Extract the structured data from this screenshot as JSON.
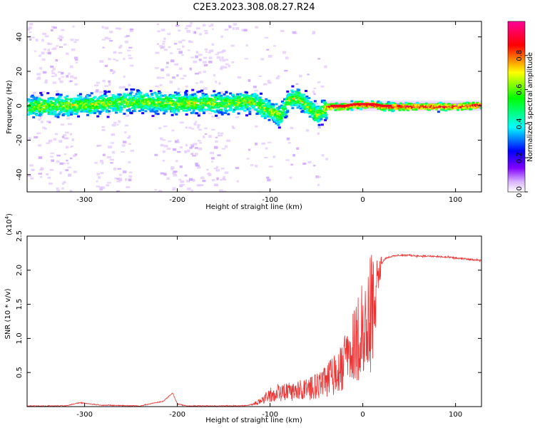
{
  "title": "C2E3.2023.308.08.27.R24",
  "chart_data": [
    {
      "type": "heatmap",
      "xlabel": "Height of straight line (km)",
      "ylabel": "Frequency (Hz)",
      "xlim": [
        -362,
        128
      ],
      "ylim": [
        -50,
        49
      ],
      "xticks": [
        -300,
        -200,
        -100,
        0,
        100
      ],
      "yticks": [
        -40,
        -20,
        0,
        20,
        40
      ],
      "xtick_labels": [
        "-300",
        "-200",
        "-100",
        "0",
        "100"
      ],
      "ytick_labels": [
        "-40",
        "-20",
        "0",
        "20",
        "40"
      ],
      "ridge": {
        "description": "Frequency of the spectral peak vs height",
        "x": [
          -362,
          -300,
          -250,
          -200,
          -150,
          -120,
          -100,
          -90,
          -80,
          -70,
          -60,
          -50,
          -40,
          -30,
          -20,
          -10,
          0,
          10,
          20,
          50,
          100,
          128
        ],
        "y": [
          0,
          1,
          3,
          2,
          2,
          3,
          -3,
          -5,
          4,
          5,
          0,
          -5,
          0,
          0,
          0,
          1,
          1,
          1,
          0,
          0,
          0,
          1
        ]
      },
      "colorbar": {
        "label": "Normalized spectral amplitude",
        "range": [
          0.0,
          1.0
        ],
        "ticks": [
          0.0,
          0.2,
          0.4,
          0.6,
          0.8
        ],
        "tick_labels": [
          "0.0",
          "0.2",
          "0.4",
          "0.6",
          "0.8"
        ],
        "colormap": [
          "#8000ff",
          "#0000ff",
          "#00ffff",
          "#00ff00",
          "#ffff00",
          "#ff0000",
          "#ff00aa"
        ]
      }
    },
    {
      "type": "line",
      "xlabel": "Height of straight line (km)",
      "ylabel": "SNR (10 * v/v)",
      "y_multiplier": "(x10",
      "y_multiplier_exp": "4",
      "y_multiplier_close": ")",
      "xlim": [
        -362,
        128
      ],
      "ylim": [
        0,
        2.5
      ],
      "xticks": [
        -300,
        -200,
        -100,
        0,
        100
      ],
      "yticks": [
        0.5,
        1.0,
        1.5,
        2.0,
        2.5
      ],
      "xtick_labels": [
        "-300",
        "-200",
        "-100",
        "0",
        "100"
      ],
      "ytick_labels": [
        "0.5",
        "1.0",
        "1.5",
        "2.0",
        "2.5"
      ],
      "series": [
        {
          "name": "SNR",
          "color": "#ee3333",
          "x": [
            -362,
            -320,
            -305,
            -295,
            -280,
            -240,
            -215,
            -205,
            -200,
            -190,
            -160,
            -130,
            -120,
            -110,
            -100,
            -90,
            -80,
            -70,
            -60,
            -50,
            -40,
            -35,
            -30,
            -25,
            -20,
            -15,
            -10,
            -5,
            0,
            5,
            10,
            15,
            20,
            25,
            30,
            40,
            50,
            60,
            80,
            100,
            120,
            128
          ],
          "y": [
            0.01,
            0.01,
            0.06,
            0.04,
            0.02,
            0.01,
            0.08,
            0.2,
            0.04,
            0.01,
            0.01,
            0.01,
            0.03,
            0.1,
            0.2,
            0.25,
            0.25,
            0.28,
            0.3,
            0.35,
            0.42,
            0.5,
            0.55,
            0.6,
            0.75,
            0.85,
            1.0,
            1.2,
            1.3,
            1.45,
            1.7,
            2.0,
            2.1,
            2.18,
            2.2,
            2.22,
            2.22,
            2.21,
            2.2,
            2.18,
            2.15,
            2.14
          ]
        }
      ]
    }
  ]
}
